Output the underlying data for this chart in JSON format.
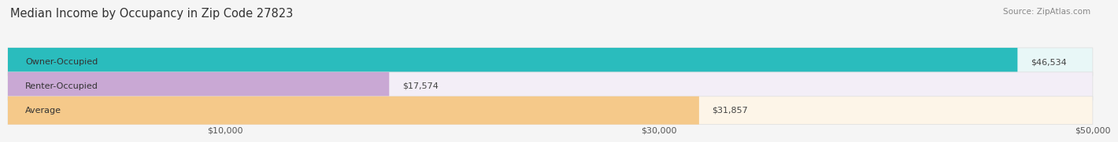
{
  "title": "Median Income by Occupancy in Zip Code 27823",
  "source": "Source: ZipAtlas.com",
  "categories": [
    "Owner-Occupied",
    "Renter-Occupied",
    "Average"
  ],
  "values": [
    46534,
    17574,
    31857
  ],
  "bar_colors": [
    "#2abcbd",
    "#c9a8d4",
    "#f5c98a"
  ],
  "bar_bg_colors": [
    "#e8f7f7",
    "#f3eef7",
    "#fdf5e8"
  ],
  "value_labels": [
    "$46,534",
    "$17,574",
    "$31,857"
  ],
  "xlim": [
    0,
    50000
  ],
  "xticks": [
    10000,
    30000,
    50000
  ],
  "xtick_labels": [
    "$10,000",
    "$30,000",
    "$50,000"
  ],
  "bar_height": 0.58,
  "bg_color": "#f5f5f5",
  "title_fontsize": 10.5,
  "label_fontsize": 8,
  "value_fontsize": 8,
  "source_fontsize": 7.5
}
